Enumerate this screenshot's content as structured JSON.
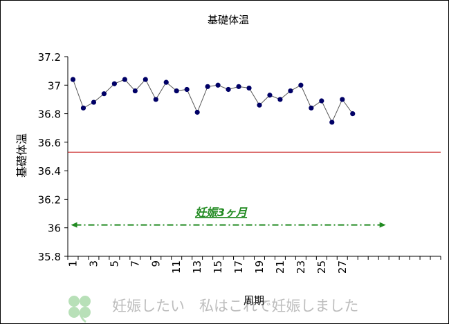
{
  "chart_data": {
    "type": "line",
    "title": "基礎体温",
    "xlabel": "周期",
    "ylabel": "基礎体温",
    "ylim": [
      35.8,
      37.2
    ],
    "yticks": [
      35.8,
      36,
      36.2,
      36.4,
      36.6,
      36.8,
      37,
      37.2
    ],
    "ytick_labels": [
      "35.8",
      "36",
      "36.2",
      "36.4",
      "36.6",
      "36.8",
      "37",
      "37.2"
    ],
    "xlim": [
      1,
      36
    ],
    "xtick_labels": [
      "1",
      "3",
      "5",
      "7",
      "9",
      "11",
      "13",
      "15",
      "17",
      "19",
      "21",
      "23",
      "25",
      "27"
    ],
    "xtick_values": [
      1,
      3,
      5,
      7,
      9,
      11,
      13,
      15,
      17,
      19,
      21,
      23,
      25,
      27
    ],
    "grid": false,
    "series": [
      {
        "x": [
          1,
          2,
          3,
          4,
          5,
          6,
          7,
          8,
          9,
          10,
          11,
          12,
          13,
          14,
          15,
          16,
          17,
          18,
          19,
          20,
          21,
          22,
          23,
          24,
          25,
          26,
          27,
          28
        ],
        "values": [
          37.04,
          36.84,
          36.88,
          36.94,
          37.01,
          37.04,
          36.96,
          37.04,
          36.9,
          37.02,
          36.96,
          36.97,
          36.81,
          36.99,
          37.0,
          36.97,
          36.99,
          36.98,
          36.86,
          36.93,
          36.9,
          36.96,
          37.0,
          36.84,
          36.89,
          36.74,
          36.9,
          36.8
        ],
        "color": "#000066",
        "line_color": "#555555"
      }
    ],
    "reference_line": {
      "y": 36.53,
      "color": "#C00000"
    },
    "annotation": {
      "text": "妊娠3ヶ月",
      "color": "#228B22",
      "arrow_y": 36.02,
      "arrow_from_x": 1,
      "arrow_to_x": 31
    }
  },
  "watermark": {
    "text": "妊娠したい　私はこれで妊娠しました",
    "icon": "clover-icon",
    "color": "#BDBDBD",
    "icon_color": "#B8E0B8"
  }
}
